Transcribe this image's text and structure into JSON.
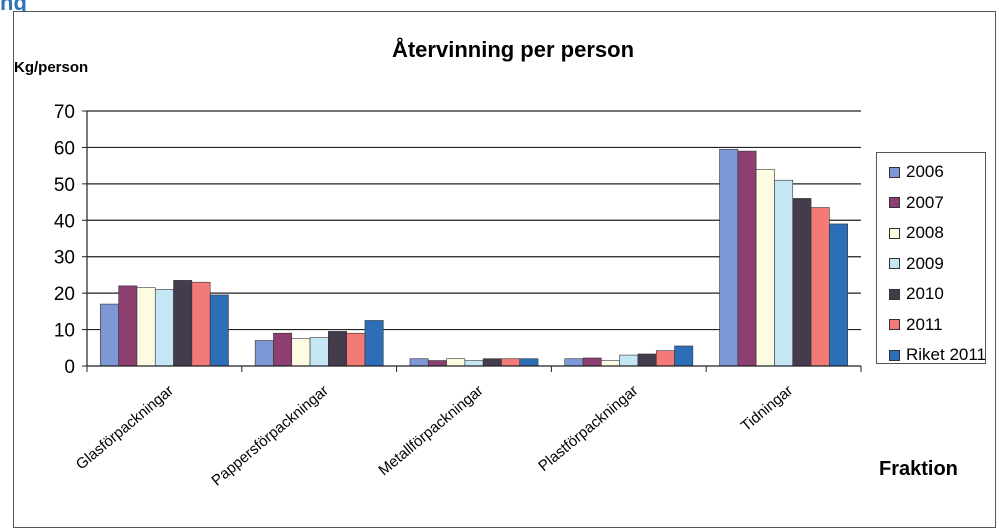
{
  "page": {
    "heading_fragment": "ng"
  },
  "chart_data": {
    "type": "bar",
    "title": "Återvinning per person",
    "ylabel": "Kg/person",
    "xlabel": "Fraktion",
    "ylim": [
      0,
      70
    ],
    "yticks": [
      0,
      10,
      20,
      30,
      40,
      50,
      60,
      70
    ],
    "grid": true,
    "legend_position": "right",
    "categories": [
      "Glasförpackningar",
      "Pappersförpackningar",
      "Metallförpackningar",
      "Plastförpackningar",
      "Tidningar"
    ],
    "series": [
      {
        "name": "2006",
        "color": "#7d98d4",
        "values": [
          17,
          7,
          2,
          2,
          59.5
        ]
      },
      {
        "name": "2007",
        "color": "#8c3f70",
        "values": [
          22,
          9,
          1.5,
          2.2,
          59
        ]
      },
      {
        "name": "2008",
        "color": "#fdfbe1",
        "values": [
          21.5,
          7.5,
          2,
          1.5,
          54
        ]
      },
      {
        "name": "2009",
        "color": "#c5e6f4",
        "values": [
          21,
          7.8,
          1.5,
          3,
          51
        ]
      },
      {
        "name": "2010",
        "color": "#443c4c",
        "values": [
          23.5,
          9.5,
          2,
          3.3,
          46
        ]
      },
      {
        "name": "2011",
        "color": "#f47a78",
        "values": [
          23,
          9,
          2,
          4.2,
          43.5
        ]
      },
      {
        "name": "Riket 2011",
        "color": "#2c6eb8",
        "values": [
          19.5,
          12.5,
          2,
          5.5,
          39
        ]
      }
    ]
  }
}
